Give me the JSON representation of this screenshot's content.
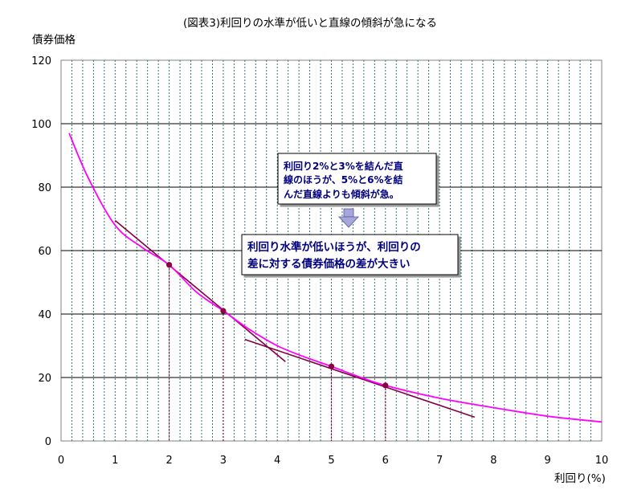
{
  "chart_data": {
    "type": "line",
    "title": "(図表3)利回りの水準が低いと直線の傾斜が急になる",
    "ylabel": "債券価格",
    "xlabel": "利回り(%)",
    "xlim": [
      0,
      10
    ],
    "ylim": [
      0,
      120
    ],
    "x_ticks": [
      "0",
      "1",
      "2",
      "3",
      "4",
      "5",
      "6",
      "7",
      "8",
      "9",
      "10"
    ],
    "y_ticks": [
      "0",
      "20",
      "40",
      "60",
      "80",
      "100",
      "120"
    ],
    "grid": "horizontal solid at each 20; vertical dashed at every 0.2",
    "colors": {
      "curve": "#ff00ff",
      "chord": "#800040",
      "point": "#8b0040",
      "note_text": "#000080"
    },
    "curve": {
      "x": [
        0.15,
        0.5,
        1.0,
        1.5,
        2.0,
        2.5,
        3.0,
        3.5,
        4.0,
        4.5,
        5.0,
        5.5,
        6.0,
        7.0,
        8.0,
        9.0,
        10.0
      ],
      "y": [
        97,
        83,
        68,
        61,
        55.5,
        47,
        41,
        35,
        30,
        26.5,
        23.5,
        20.3,
        17.5,
        13.5,
        10.5,
        7.8,
        6
      ]
    },
    "points": [
      {
        "x": 2,
        "y": 55.5
      },
      {
        "x": 3,
        "y": 41
      },
      {
        "x": 5,
        "y": 23.5
      },
      {
        "x": 6,
        "y": 17.5
      }
    ],
    "chords": [
      {
        "x": [
          1.0,
          4.15
        ],
        "y": [
          69.5,
          25
        ]
      },
      {
        "x": [
          3.4,
          7.65
        ],
        "y": [
          32,
          7.5
        ]
      }
    ],
    "annotations": {
      "note_line1": "利回り2%と3%を結んだ直",
      "note_line2": "線のほうが、5%と6%を結",
      "note_line3": "んだ直線よりも傾斜が急。",
      "callout_line1": "利回り水準が低いほうが、利回りの",
      "callout_line2": "差に対する債券価格の差が大きい"
    }
  }
}
